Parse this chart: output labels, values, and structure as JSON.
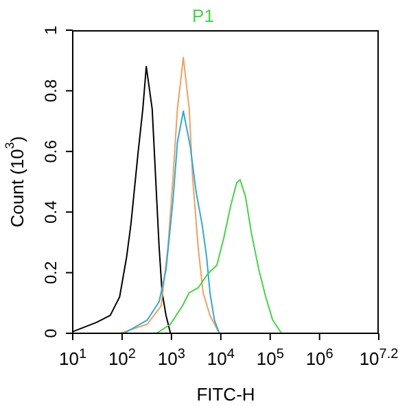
{
  "chart_data": {
    "type": "line",
    "xlabel": "FITC-H",
    "ylabel": "Count (10$^{3}$)",
    "log": "x",
    "legend": "top",
    "grid": false,
    "marker": "none",
    "line_style": "solid",
    "xlim": [
      10,
      15848932
    ],
    "ylim": [
      0,
      1
    ],
    "xticks": [
      {
        "value": 10,
        "label": "10$^{1}$"
      },
      {
        "value": 100,
        "label": "10$^{2}$"
      },
      {
        "value": 1000,
        "label": "10$^{3}$"
      },
      {
        "value": 10000,
        "label": "10$^{4}$"
      },
      {
        "value": 100000,
        "label": "10$^{5}$"
      },
      {
        "value": 1000000,
        "label": "10$^{6}$"
      },
      {
        "value": 15848932,
        "label": "10$^{7.2}$"
      }
    ],
    "yticks": [
      0,
      0.2,
      0.4,
      0.6,
      0.8,
      1
    ],
    "series": [
      {
        "color": "#000000",
        "x": [
          10.2,
          30.2,
          57.5,
          89,
          123,
          151,
          209,
          263,
          309,
          407,
          479,
          562,
          646,
          776,
          955
        ],
        "values": [
          0.006,
          0.036,
          0.059,
          0.12,
          0.25,
          0.36,
          0.59,
          0.74,
          0.88,
          0.74,
          0.51,
          0.285,
          0.135,
          0.059,
          0
        ]
      },
      {
        "color": "#f0a060",
        "x": [
          89,
          324,
          617,
          851,
          1070,
          1320,
          1740,
          2290,
          2690,
          3470,
          4370,
          6030,
          9330
        ],
        "values": [
          0,
          0.03,
          0.09,
          0.285,
          0.51,
          0.74,
          0.91,
          0.74,
          0.51,
          0.285,
          0.134,
          0.059,
          0
        ]
      },
      {
        "color": "#30a8d8",
        "x": [
          110,
          324,
          562,
          776,
          1070,
          1320,
          1740,
          2400,
          3160,
          4170,
          5130,
          6030,
          7410,
          9330
        ],
        "values": [
          0,
          0.044,
          0.104,
          0.21,
          0.436,
          0.63,
          0.733,
          0.617,
          0.466,
          0.36,
          0.255,
          0.134,
          0.044,
          0
        ]
      },
      {
        "name": "P1",
        "color": "#44d444",
        "x": [
          501,
          955,
          1660,
          2290,
          3470,
          5370,
          8320,
          11500,
          15800,
          20900,
          24500,
          31600,
          41700,
          58900,
          81300,
          112000,
          170000,
          234000
        ],
        "values": [
          0,
          0.03,
          0.09,
          0.134,
          0.15,
          0.195,
          0.225,
          0.315,
          0.42,
          0.496,
          0.507,
          0.451,
          0.33,
          0.21,
          0.12,
          0.044,
          0,
          0
        ]
      }
    ]
  }
}
